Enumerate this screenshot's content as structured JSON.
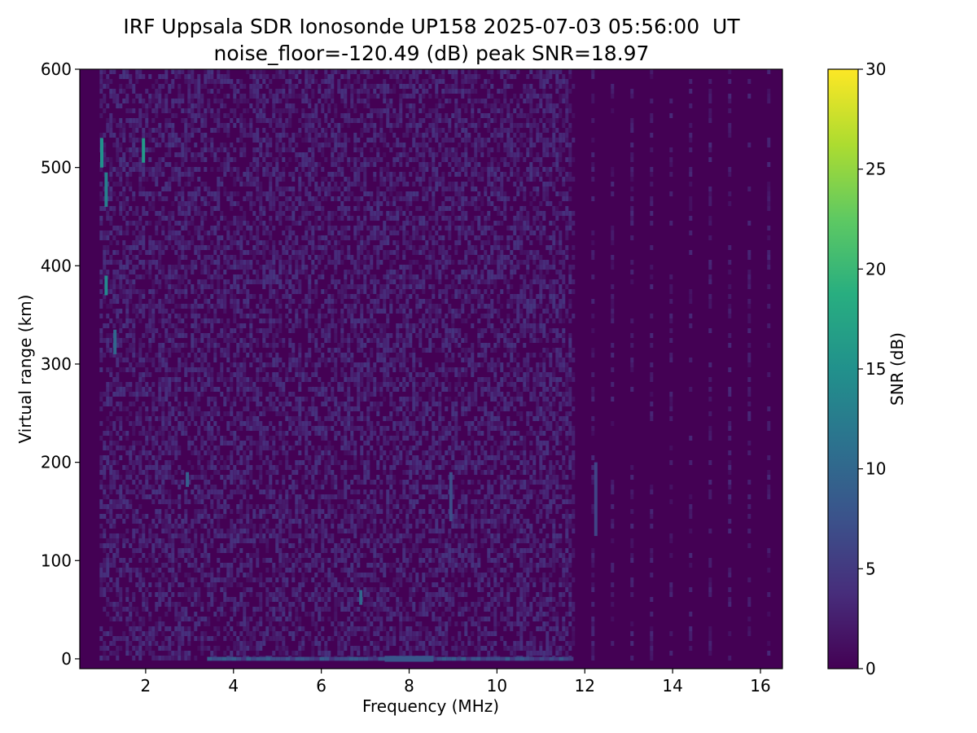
{
  "chart_data": {
    "type": "heatmap",
    "title": "IRF Uppsala SDR Ionosonde UP158 2025-07-03 05:56:00  UT",
    "subtitle": "noise_floor=-120.49 (dB) peak SNR=18.97",
    "xlabel": "Frequency (MHz)",
    "ylabel": "Virtual range (km)",
    "xlim": [
      0.5,
      16.5
    ],
    "ylim": [
      -10,
      600
    ],
    "x_ticks": [
      "2",
      "4",
      "6",
      "8",
      "10",
      "12",
      "14",
      "16"
    ],
    "x_tick_values": [
      2,
      4,
      6,
      8,
      10,
      12,
      14,
      16
    ],
    "y_ticks": [
      "0",
      "100",
      "200",
      "300",
      "400",
      "500",
      "600"
    ],
    "y_tick_values": [
      0,
      100,
      200,
      300,
      400,
      500,
      600
    ],
    "colorbar": {
      "label": "SNR (dB)",
      "colormap": "viridis",
      "range": [
        0,
        30
      ],
      "ticks": [
        "0",
        "5",
        "10",
        "15",
        "20",
        "25",
        "30"
      ],
      "tick_values": [
        0,
        5,
        10,
        15,
        20,
        25,
        30
      ]
    },
    "noise_floor_db": -120.49,
    "peak_snr_db": 18.97,
    "background_color": "#440154",
    "features": [
      {
        "freq_mhz": 1.0,
        "range_km": [
          500,
          530
        ],
        "snr_db": 15
      },
      {
        "freq_mhz": 1.1,
        "range_km": [
          460,
          495
        ],
        "snr_db": 13
      },
      {
        "freq_mhz": 1.1,
        "range_km": [
          370,
          390
        ],
        "snr_db": 14
      },
      {
        "freq_mhz": 1.3,
        "range_km": [
          310,
          335
        ],
        "snr_db": 10
      },
      {
        "freq_mhz": 1.95,
        "range_km": [
          505,
          530
        ],
        "snr_db": 16
      },
      {
        "freq_mhz": 2.95,
        "range_km": [
          175,
          190
        ],
        "snr_db": 9
      },
      {
        "freq_mhz": 6.9,
        "range_km": [
          55,
          70
        ],
        "snr_db": 10
      },
      {
        "freq_mhz": 8.95,
        "range_km": [
          140,
          190
        ],
        "snr_db": 7
      },
      {
        "freq_mhz": 12.25,
        "range_km": [
          125,
          200
        ],
        "snr_db": 6
      },
      {
        "freq_mhz": 8.0,
        "range_km": [
          -3,
          3
        ],
        "snr_db": 8
      }
    ]
  }
}
